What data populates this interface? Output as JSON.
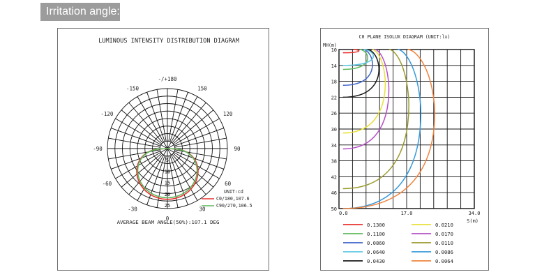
{
  "header": {
    "tag_label": "Irritation angle:"
  },
  "chart_data": [
    {
      "type": "polar",
      "title": "LUMINOUS INTENSITY DISTRIBUTION DIAGRAM",
      "angle_labels": [
        "-/+180",
        "150",
        "120",
        "90",
        "60",
        "30",
        "0",
        "-30",
        "-60",
        "-90",
        "-120",
        "-150"
      ],
      "radial_labels": [
        "5",
        "10",
        "15",
        "20",
        "25"
      ],
      "unit": "UNIT:cd",
      "series": [
        {
          "name": "C0/180,107.6",
          "color": "#e8332f",
          "peak": 22,
          "beam_angle": 107.6
        },
        {
          "name": "C90/270,106.5",
          "color": "#5cb85c",
          "peak": 19.5,
          "beam_angle": 106.5
        }
      ],
      "footnote": "AVERAGE BEAM ANGLE(50%):107.1 DEG"
    },
    {
      "type": "isolux",
      "title": "C0 PLANE ISOLUX DIAGRAM (UNIT:lx)",
      "ylabel": "MH(m)",
      "xlabel": "S(m)",
      "y_ticks": [
        "10",
        "14",
        "18",
        "22",
        "26",
        "30",
        "34",
        "38",
        "42",
        "46",
        "50"
      ],
      "x_ticks": [
        "0.0",
        "17.0",
        "34.0"
      ],
      "ylim": [
        10,
        50
      ],
      "xlim": [
        0,
        34
      ],
      "series": [
        {
          "value": "0.1300",
          "color": "#e8332f",
          "reach": [
            1.0,
            10.8,
            5.0
          ]
        },
        {
          "value": "0.1100",
          "color": "#5cb85c",
          "reach": [
            1.0,
            15.0,
            7.2
          ]
        },
        {
          "value": "0.0860",
          "color": "#3e63c8",
          "reach": [
            1.0,
            19.0,
            8.4
          ]
        },
        {
          "value": "0.0640",
          "color": "#5bc8e0",
          "reach": [
            1.0,
            14.0,
            8.6
          ]
        },
        {
          "value": "0.0430",
          "color": "#1a1a1a",
          "reach": [
            1.0,
            22.0,
            10.0
          ]
        },
        {
          "value": "0.0210",
          "color": "#e8e03a",
          "reach": [
            1.0,
            31.0,
            11.6
          ]
        },
        {
          "value": "0.0170",
          "color": "#b64fc8",
          "reach": [
            1.0,
            35.0,
            12.5
          ]
        },
        {
          "value": "0.0110",
          "color": "#9a9a2c",
          "reach": [
            1.0,
            45.0,
            17.5
          ]
        },
        {
          "value": "0.0086",
          "color": "#3498db",
          "reach": [
            1.0,
            50.0,
            20.5
          ]
        },
        {
          "value": "0.0064",
          "color": "#f0823c",
          "reach": [
            1.0,
            50.0,
            24.0
          ]
        }
      ]
    }
  ]
}
